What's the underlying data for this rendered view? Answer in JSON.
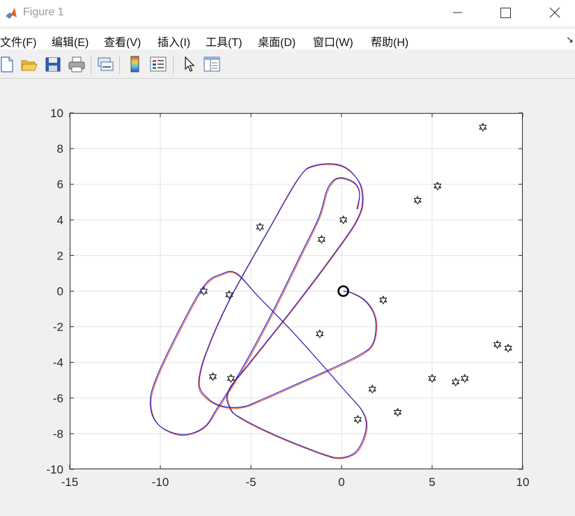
{
  "window": {
    "title": "Figure 1",
    "controls": [
      "minimize",
      "maximize",
      "close"
    ]
  },
  "menubar": {
    "items": [
      {
        "label": "文件(F)"
      },
      {
        "label": "编辑(E)"
      },
      {
        "label": "查看(V)"
      },
      {
        "label": "插入(I)"
      },
      {
        "label": "工具(T)"
      },
      {
        "label": "桌面(D)"
      },
      {
        "label": "窗口(W)"
      },
      {
        "label": "帮助(H)"
      }
    ],
    "overflow_arrow": "↘"
  },
  "toolbar": {
    "buttons": [
      "new-figure-icon",
      "open-file-icon",
      "save-icon",
      "print-icon",
      "link-plot-icon",
      "insert-colorbar-icon",
      "insert-legend-icon",
      "edit-plot-cursor-icon",
      "property-inspector-icon"
    ]
  },
  "colors": {
    "orange_path": "#e8582a",
    "blue_path": "#1b1bd6",
    "grid": "#e3e3e3"
  },
  "chart_data": {
    "type": "line",
    "xlim": [
      -15,
      10
    ],
    "ylim": [
      -10,
      10
    ],
    "xticks": [
      -15,
      -10,
      -5,
      0,
      5,
      10
    ],
    "yticks": [
      -10,
      -8,
      -6,
      -4,
      -2,
      0,
      2,
      4,
      6,
      8,
      10
    ],
    "xtick_labels": [
      "-15",
      "-10",
      "-5",
      "0",
      "5",
      "10"
    ],
    "ytick_labels": [
      "-10",
      "-8",
      "-6",
      "-4",
      "-2",
      "0",
      "2",
      "4",
      "6",
      "8",
      "10"
    ],
    "grid": true,
    "start_marker": {
      "x": 0.1,
      "y": 0.0,
      "marker": "circle"
    },
    "landmarks": [
      {
        "x": 7.8,
        "y": 9.2
      },
      {
        "x": 5.3,
        "y": 5.9
      },
      {
        "x": 4.2,
        "y": 5.1
      },
      {
        "x": 0.1,
        "y": 4.0
      },
      {
        "x": -1.1,
        "y": 2.9
      },
      {
        "x": -4.5,
        "y": 3.6
      },
      {
        "x": -7.6,
        "y": 0.0
      },
      {
        "x": -6.2,
        "y": -0.2
      },
      {
        "x": 2.3,
        "y": -0.5
      },
      {
        "x": -1.2,
        "y": -2.4
      },
      {
        "x": 8.6,
        "y": -3.0
      },
      {
        "x": 9.2,
        "y": -3.2
      },
      {
        "x": -7.1,
        "y": -4.8
      },
      {
        "x": -6.1,
        "y": -4.9
      },
      {
        "x": 5.0,
        "y": -4.9
      },
      {
        "x": 6.3,
        "y": -5.1
      },
      {
        "x": 6.8,
        "y": -4.9
      },
      {
        "x": 1.7,
        "y": -5.5
      },
      {
        "x": 3.1,
        "y": -6.8
      },
      {
        "x": 0.9,
        "y": -7.2
      }
    ],
    "series": [
      {
        "color": "#e8582a",
        "points": [
          [
            0.1,
            0.0
          ],
          [
            0.6,
            -0.1
          ],
          [
            1.3,
            -0.5
          ],
          [
            1.8,
            -1.2
          ],
          [
            1.95,
            -2.0
          ],
          [
            1.75,
            -3.0
          ],
          [
            1.1,
            -3.6
          ],
          [
            -0.5,
            -4.4
          ],
          [
            -2.5,
            -5.3
          ],
          [
            -4.5,
            -6.2
          ],
          [
            -5.5,
            -6.55
          ],
          [
            -6.6,
            -6.5
          ],
          [
            -7.5,
            -6.0
          ],
          [
            -7.9,
            -5.2
          ],
          [
            -7.5,
            -3.5
          ],
          [
            -6.2,
            -0.5
          ],
          [
            -4.0,
            3.5
          ],
          [
            -2.4,
            6.3
          ],
          [
            -1.5,
            7.0
          ],
          [
            0.0,
            7.0
          ],
          [
            1.0,
            6.1
          ],
          [
            1.2,
            5.0
          ],
          [
            0.9,
            4.0
          ],
          [
            0.0,
            2.6
          ],
          [
            -2.5,
            -0.8
          ],
          [
            -5.0,
            -4.0
          ],
          [
            -6.2,
            -5.6
          ],
          [
            -6.1,
            -6.6
          ],
          [
            -5.5,
            -7.2
          ],
          [
            -3.5,
            -8.2
          ],
          [
            -1.0,
            -9.2
          ],
          [
            0.0,
            -9.4
          ],
          [
            0.9,
            -9.0
          ],
          [
            1.4,
            -7.8
          ],
          [
            1.2,
            -6.8
          ],
          [
            0.2,
            -5.6
          ],
          [
            -2.5,
            -2.5
          ],
          [
            -4.5,
            -0.4
          ],
          [
            -5.8,
            0.95
          ],
          [
            -6.6,
            0.9
          ],
          [
            -7.5,
            0.3
          ],
          [
            -8.7,
            -1.8
          ],
          [
            -10.2,
            -5.0
          ],
          [
            -10.5,
            -6.5
          ],
          [
            -10.0,
            -7.6
          ],
          [
            -8.8,
            -8.1
          ],
          [
            -7.6,
            -7.7
          ],
          [
            -6.8,
            -6.6
          ],
          [
            -5.5,
            -4.5
          ],
          [
            -3.8,
            -1.3
          ],
          [
            -2.2,
            2.0
          ],
          [
            -1.2,
            4.1
          ],
          [
            -0.8,
            5.5
          ],
          [
            -0.5,
            6.05
          ],
          [
            -0.2,
            6.3
          ],
          [
            0.3,
            6.25
          ],
          [
            0.8,
            5.95
          ],
          [
            1.0,
            5.4
          ],
          [
            0.9,
            4.6
          ]
        ]
      },
      {
        "color": "#1b1bd6",
        "points": [
          [
            0.1,
            0.0
          ],
          [
            0.55,
            -0.1
          ],
          [
            1.25,
            -0.5
          ],
          [
            1.75,
            -1.2
          ],
          [
            1.9,
            -2.0
          ],
          [
            1.7,
            -3.0
          ],
          [
            1.05,
            -3.55
          ],
          [
            -0.55,
            -4.35
          ],
          [
            -2.55,
            -5.25
          ],
          [
            -4.55,
            -6.15
          ],
          [
            -5.5,
            -6.5
          ],
          [
            -6.6,
            -6.45
          ],
          [
            -7.45,
            -5.95
          ],
          [
            -7.85,
            -5.15
          ],
          [
            -7.45,
            -3.45
          ],
          [
            -6.15,
            -0.45
          ],
          [
            -3.95,
            3.55
          ],
          [
            -2.35,
            6.35
          ],
          [
            -1.5,
            7.05
          ],
          [
            0.0,
            7.05
          ],
          [
            0.95,
            6.15
          ],
          [
            1.15,
            5.0
          ],
          [
            0.85,
            4.0
          ],
          [
            -0.05,
            2.6
          ],
          [
            -2.55,
            -0.8
          ],
          [
            -5.05,
            -4.0
          ],
          [
            -6.25,
            -5.6
          ],
          [
            -6.15,
            -6.6
          ],
          [
            -5.5,
            -7.15
          ],
          [
            -3.5,
            -8.15
          ],
          [
            -1.0,
            -9.15
          ],
          [
            0.0,
            -9.35
          ],
          [
            0.85,
            -8.95
          ],
          [
            1.35,
            -7.75
          ],
          [
            1.15,
            -6.75
          ],
          [
            0.15,
            -5.55
          ],
          [
            -2.55,
            -2.45
          ],
          [
            -4.55,
            -0.35
          ],
          [
            -5.8,
            1.0
          ],
          [
            -6.65,
            0.95
          ],
          [
            -7.55,
            0.35
          ],
          [
            -8.75,
            -1.75
          ],
          [
            -10.25,
            -4.95
          ],
          [
            -10.55,
            -6.45
          ],
          [
            -10.05,
            -7.55
          ],
          [
            -8.8,
            -8.05
          ],
          [
            -7.6,
            -7.65
          ],
          [
            -6.85,
            -6.55
          ],
          [
            -5.55,
            -4.45
          ],
          [
            -3.85,
            -1.25
          ],
          [
            -2.25,
            2.05
          ],
          [
            -1.25,
            4.15
          ],
          [
            -0.85,
            5.55
          ],
          [
            -0.55,
            6.1
          ],
          [
            -0.2,
            6.35
          ],
          [
            0.3,
            6.3
          ],
          [
            0.8,
            6.0
          ],
          [
            1.0,
            5.45
          ],
          [
            0.85,
            4.6
          ]
        ]
      }
    ]
  }
}
